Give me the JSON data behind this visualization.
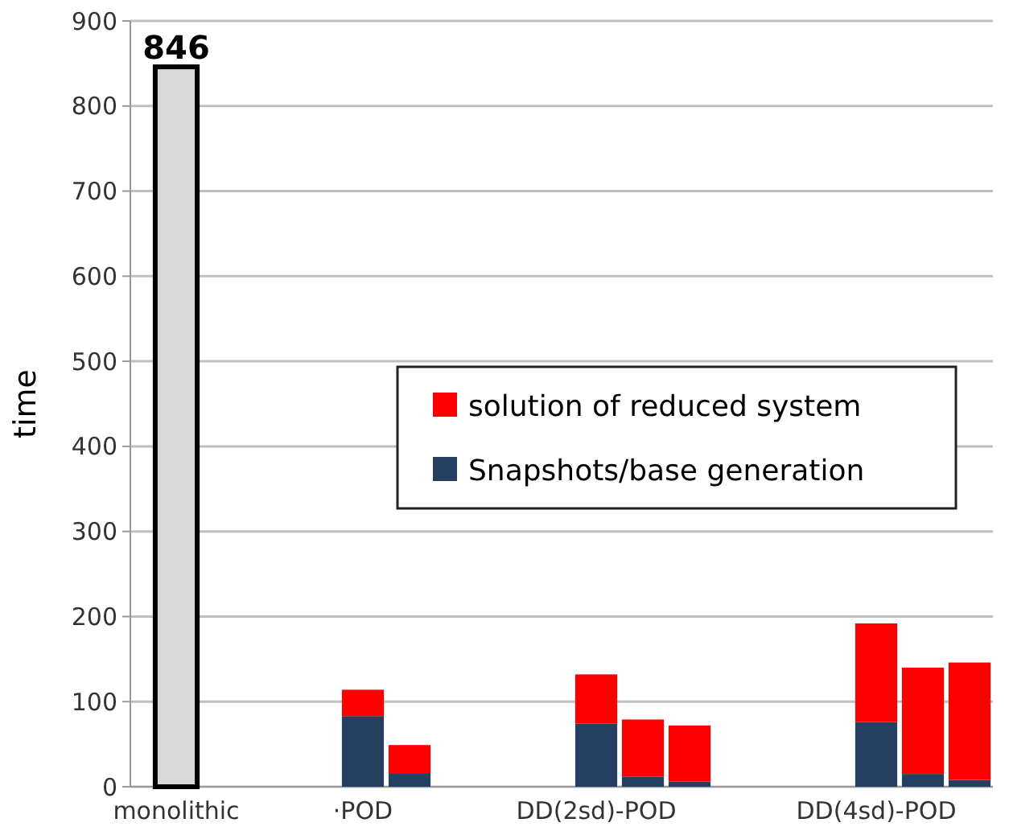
{
  "chart_data": {
    "type": "bar",
    "stacked": true,
    "ylabel": "time",
    "categories": [
      "monolithic",
      null,
      null,
      null,
      "·POD",
      null,
      null,
      null,
      null,
      "DD(2sd)-POD",
      null,
      null,
      null,
      null,
      null,
      "DD(4sd)-POD",
      null,
      null
    ],
    "series": [
      {
        "color": "#d9d9d9",
        "values": [
          846,
          null,
          null,
          null,
          null,
          null,
          null,
          null,
          null,
          null,
          null,
          null,
          null,
          null,
          null,
          null,
          null,
          null
        ],
        "value_labels": [
          "846",
          null,
          null,
          null,
          null,
          null,
          null,
          null,
          null,
          null,
          null,
          null,
          null,
          null,
          null,
          null,
          null,
          null
        ]
      },
      {
        "name": "Snapshots/base generation",
        "color": "#243f60",
        "values": [
          null,
          null,
          null,
          null,
          83,
          16,
          null,
          null,
          null,
          74,
          12,
          6,
          null,
          null,
          null,
          76,
          15,
          8
        ]
      },
      {
        "name": "solution of reduced system",
        "color": "#ff0000",
        "values": [
          null,
          null,
          null,
          null,
          31,
          33,
          null,
          null,
          null,
          58,
          67,
          66,
          null,
          null,
          null,
          116,
          125,
          138
        ]
      }
    ],
    "ylim": [
      0,
      900
    ],
    "yticks": [
      0,
      100,
      200,
      300,
      400,
      500,
      600,
      700,
      800,
      900
    ],
    "grid": "y",
    "legend": "right"
  }
}
